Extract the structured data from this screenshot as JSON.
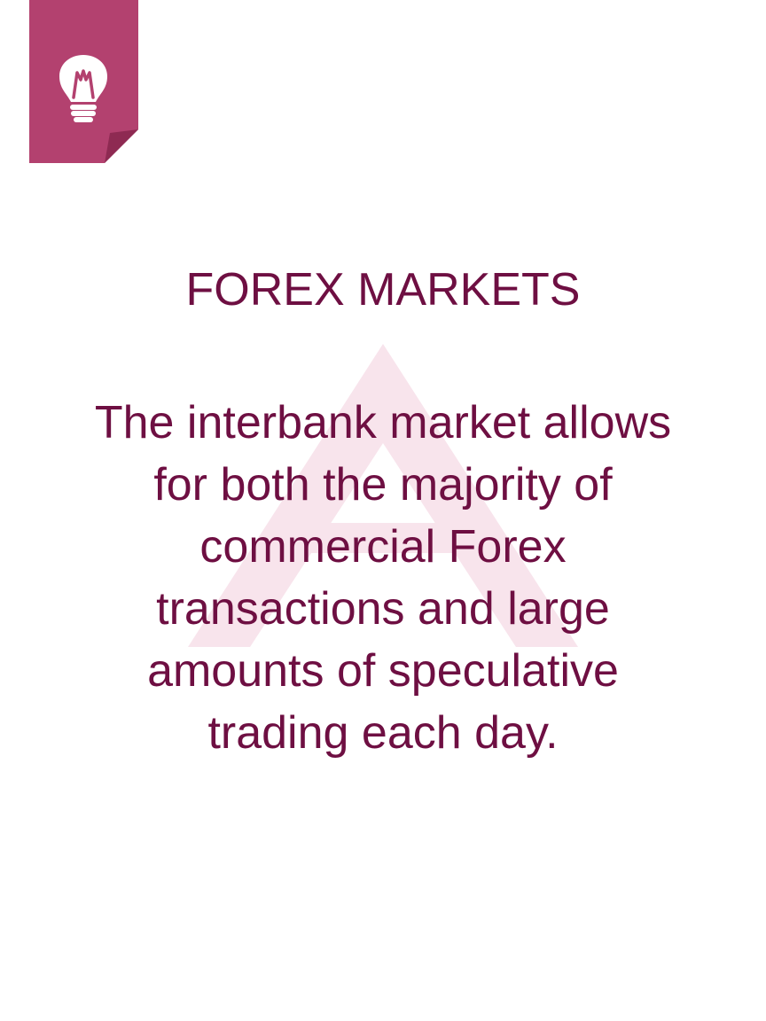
{
  "colors": {
    "accent": "#b3416f",
    "accent_fold": "#8e2a52",
    "text": "#6e0f42",
    "watermark": "#f8e4ec"
  },
  "icon": "lightbulb-icon",
  "title": "FOREX MARKETS",
  "body_lines": [
    "The interbank market allows",
    "for both the majority of",
    "commercial Forex",
    "transactions and large",
    "amounts of speculative",
    "trading each day."
  ]
}
